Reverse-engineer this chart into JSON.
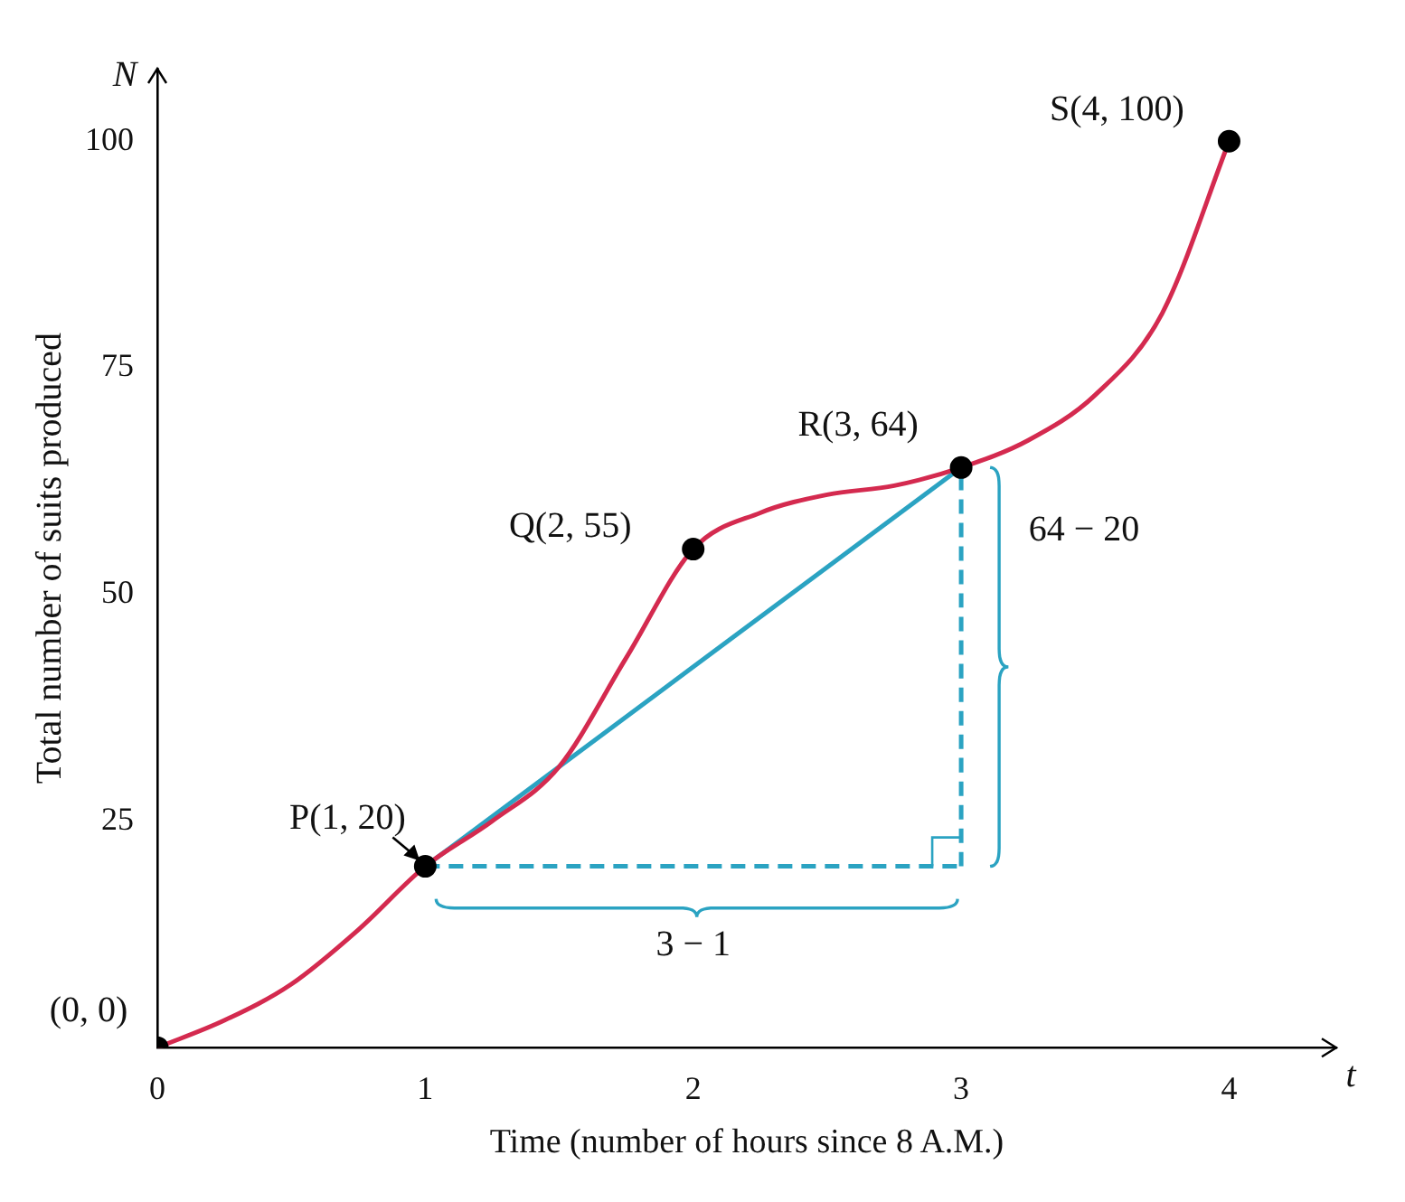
{
  "chart_data": {
    "type": "line",
    "xlabel": "Time (number of hours since 8 A.M.)",
    "ylabel": "Total number of suits produced",
    "xlim": [
      0,
      4.4
    ],
    "ylim": [
      0,
      108
    ],
    "xticks": [
      0,
      1,
      2,
      3,
      4
    ],
    "yticks": [
      25,
      50,
      75,
      100
    ],
    "grid": false,
    "legend": false,
    "series": [
      {
        "type": "line",
        "color": "#d42a4f",
        "marker": "none",
        "x": [
          0,
          0.25,
          0.5,
          0.75,
          1,
          1.25,
          1.5,
          1.75,
          2,
          2.25,
          2.5,
          2.75,
          3,
          3.25,
          3.5,
          3.75,
          4
        ],
        "values": [
          0,
          3,
          7,
          13,
          20,
          25,
          31,
          43,
          55,
          59,
          61,
          62,
          64,
          67,
          72,
          81,
          100
        ]
      },
      {
        "type": "line",
        "color": "#2ba3c2",
        "marker": "none",
        "x": [
          1,
          3
        ],
        "values": [
          20,
          64
        ]
      },
      {
        "type": "line",
        "color": "#2ba3c2",
        "marker": "none",
        "line_style": "dashed",
        "x": [
          1,
          3
        ],
        "values": [
          20,
          20
        ]
      },
      {
        "type": "line",
        "color": "#2ba3c2",
        "marker": "none",
        "line_style": "dashed",
        "x": [
          3,
          3
        ],
        "values": [
          20,
          64
        ]
      },
      {
        "type": "scatter",
        "color": "#000000",
        "marker": "circle",
        "x": [
          0,
          1,
          2,
          3,
          4
        ],
        "values": [
          0,
          20,
          55,
          64,
          100
        ]
      }
    ],
    "annotations": [
      "N",
      "t",
      {
        "text": "(0, 0)",
        "x": 0,
        "y": 0
      },
      {
        "text": "P(1, 20)",
        "x": 1,
        "y": 20
      },
      {
        "text": "Q(2, 55)",
        "x": 2,
        "y": 55
      },
      {
        "text": "R(3, 64)",
        "x": 3,
        "y": 64
      },
      {
        "text": "S(4, 100)",
        "x": 4,
        "y": 100
      },
      {
        "text": "3 − 1",
        "x": 2,
        "y": 20
      },
      {
        "text": "64 − 20",
        "x": 3,
        "y": 57
      }
    ]
  }
}
